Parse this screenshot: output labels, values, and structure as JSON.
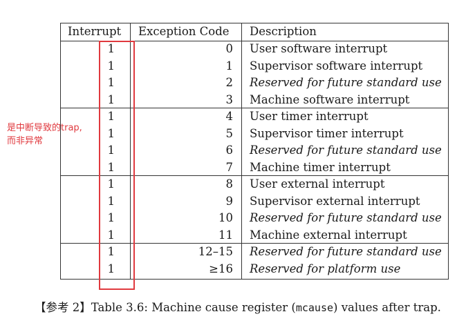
{
  "table": {
    "headers": {
      "interrupt": "Interrupt",
      "code": "Exception Code",
      "description": "Description"
    },
    "rows": [
      {
        "interrupt": "1",
        "code": "0",
        "description": "User software interrupt",
        "italic": false
      },
      {
        "interrupt": "1",
        "code": "1",
        "description": "Supervisor software interrupt",
        "italic": false
      },
      {
        "interrupt": "1",
        "code": "2",
        "description": "Reserved for future standard use",
        "italic": true
      },
      {
        "interrupt": "1",
        "code": "3",
        "description": "Machine software interrupt",
        "italic": false
      },
      {
        "interrupt": "1",
        "code": "4",
        "description": "User timer interrupt",
        "italic": false
      },
      {
        "interrupt": "1",
        "code": "5",
        "description": "Supervisor timer interrupt",
        "italic": false
      },
      {
        "interrupt": "1",
        "code": "6",
        "description": "Reserved for future standard use",
        "italic": true
      },
      {
        "interrupt": "1",
        "code": "7",
        "description": "Machine timer interrupt",
        "italic": false
      },
      {
        "interrupt": "1",
        "code": "8",
        "description": "User external interrupt",
        "italic": false
      },
      {
        "interrupt": "1",
        "code": "9",
        "description": "Supervisor external interrupt",
        "italic": false
      },
      {
        "interrupt": "1",
        "code": "10",
        "description": "Reserved for future standard use",
        "italic": true
      },
      {
        "interrupt": "1",
        "code": "11",
        "description": "Machine external interrupt",
        "italic": false
      },
      {
        "interrupt": "1",
        "code": "12–15",
        "description": "Reserved for future standard use",
        "italic": true
      },
      {
        "interrupt": "1",
        "code": "≥16",
        "description": "Reserved for platform use",
        "italic": true
      }
    ]
  },
  "annotation": {
    "line1": "是中断导致的trap,",
    "line2": "而非异常",
    "color": "#e0393e"
  },
  "caption": {
    "ref": "【参考 2】",
    "prefix": "Table 3.6: Machine cause register (",
    "code": "mcause",
    "suffix": ") values after trap."
  }
}
